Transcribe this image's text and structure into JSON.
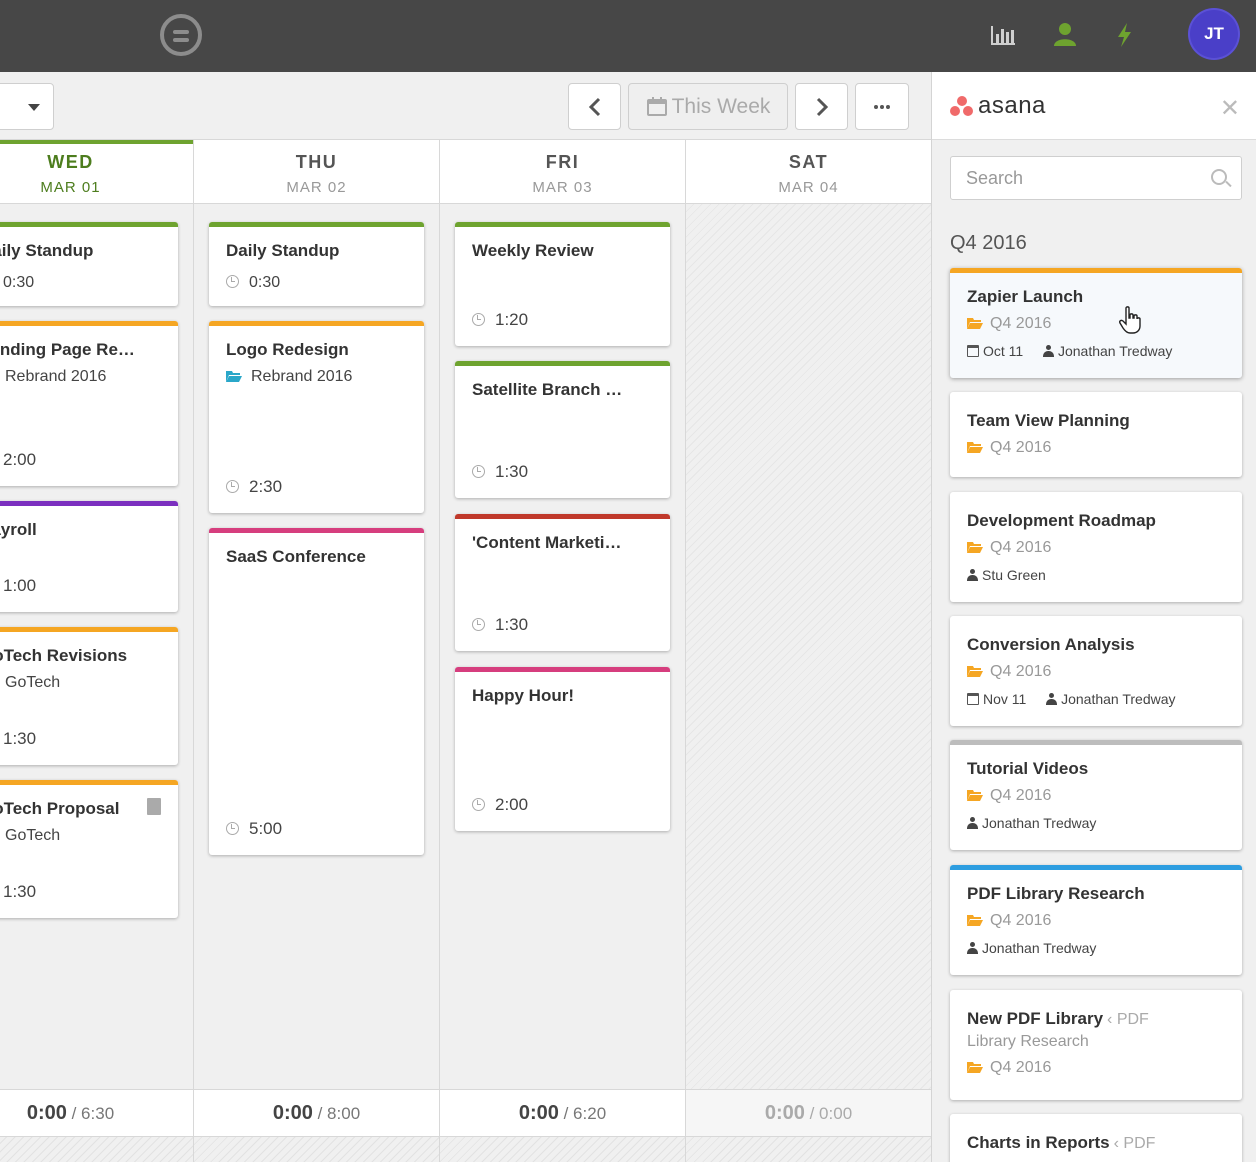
{
  "header": {
    "logo": "timely-logo",
    "icons": [
      "reports-icon",
      "people-icon",
      "lightning-icon"
    ],
    "avatar_initials": "JT",
    "colors": {
      "bar": "#474747",
      "people": "#6ea32f",
      "lightning": "#6ea32f",
      "avatar": "#4a3fc8"
    }
  },
  "toolbar": {
    "this_week_label": "This Week"
  },
  "days": [
    {
      "dow": "WED",
      "date": "MAR 01",
      "today": true,
      "logged": "0:00",
      "planned": "/ 6:30",
      "tasks": [
        {
          "title": "Daily Standup",
          "project": "",
          "duration": "0:30",
          "color": "#6ea32f"
        },
        {
          "title": "Landing Page Re…",
          "project": "Rebrand 2016",
          "duration": "2:00",
          "color": "#f5a623"
        },
        {
          "title": "Payroll",
          "project": "",
          "duration": "1:00",
          "color": "#7b2fbf"
        },
        {
          "title": "GoTech Revisions",
          "project": "GoTech",
          "duration": "1:30",
          "color": "#f5a623"
        },
        {
          "title": "GoTech Proposal",
          "project": "GoTech",
          "duration": "1:30",
          "color": "#f5a623"
        }
      ]
    },
    {
      "dow": "THU",
      "date": "MAR 02",
      "today": false,
      "logged": "0:00",
      "planned": "/ 8:00",
      "tasks": [
        {
          "title": "Daily Standup",
          "project": "",
          "duration": "0:30",
          "color": "#6ea32f"
        },
        {
          "title": "Logo Redesign",
          "project": "Rebrand 2016",
          "duration": "2:30",
          "color": "#f5a623"
        },
        {
          "title": "SaaS Conference",
          "project": "",
          "duration": "5:00",
          "color": "#d63e7e"
        }
      ]
    },
    {
      "dow": "FRI",
      "date": "MAR 03",
      "today": false,
      "logged": "0:00",
      "planned": "/ 6:20",
      "tasks": [
        {
          "title": "Weekly Review",
          "project": "",
          "duration": "1:20",
          "color": "#6ea32f"
        },
        {
          "title": "Satellite Branch …",
          "project": "",
          "duration": "1:30",
          "color": "#6ea32f"
        },
        {
          "title": "'Content Marketi…",
          "project": "",
          "duration": "1:30",
          "color": "#c0392b"
        },
        {
          "title": "Happy Hour!",
          "project": "",
          "duration": "2:00",
          "color": "#d63e7e"
        }
      ]
    },
    {
      "dow": "SAT",
      "date": "MAR 04",
      "today": false,
      "logged": "0:00",
      "planned": "/ 0:00",
      "tasks": []
    }
  ],
  "asana": {
    "logo_text": "asana",
    "search_placeholder": "Search",
    "group_title": "Q4 2016",
    "tasks": [
      {
        "title": "Zapier Launch",
        "parent": "",
        "project": "Q4 2016",
        "due": "Oct 11",
        "assignee": "Jonathan Tredway",
        "color": "#f5a623"
      },
      {
        "title": "Team View Planning",
        "parent": "",
        "project": "Q4 2016",
        "due": "",
        "assignee": "",
        "color": ""
      },
      {
        "title": "Development Roadmap",
        "parent": "",
        "project": "Q4 2016",
        "due": "",
        "assignee": "Stu Green",
        "color": ""
      },
      {
        "title": "Conversion Analysis",
        "parent": "",
        "project": "Q4 2016",
        "due": "Nov 11",
        "assignee": "Jonathan Tredway",
        "color": ""
      },
      {
        "title": "Tutorial Videos",
        "parent": "",
        "project": "Q4 2016",
        "due": "",
        "assignee": "Jonathan Tredway",
        "color": "#bdbdbd"
      },
      {
        "title": "PDF Library Research",
        "parent": "",
        "project": "Q4 2016",
        "due": "",
        "assignee": "Jonathan Tredway",
        "color": "#2d9de0"
      },
      {
        "title": "New PDF Library",
        "parent": "PDF",
        "parent_line2": "Library Research",
        "project": "Q4 2016",
        "due": "",
        "assignee": "",
        "color": ""
      },
      {
        "title": "Charts in Reports",
        "parent": "PDF",
        "project": "",
        "due": "",
        "assignee": "",
        "color": ""
      }
    ]
  }
}
